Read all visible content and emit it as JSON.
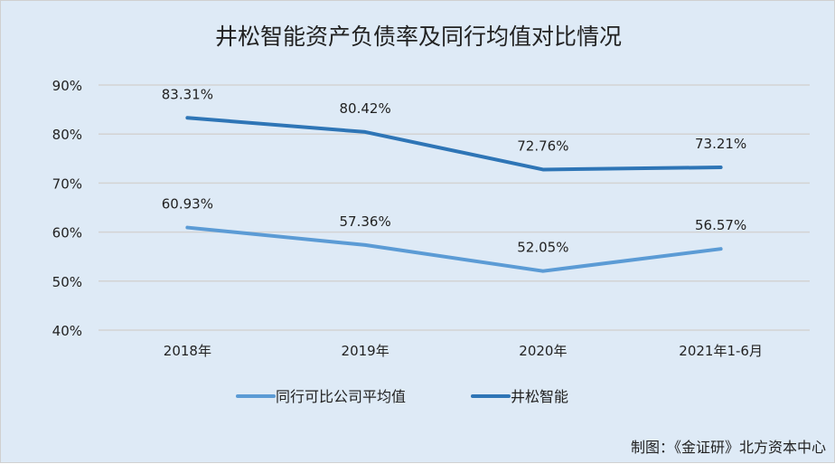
{
  "chart_data": {
    "type": "line",
    "title": "井松智能资产负债率及同行均值对比情况",
    "categories": [
      "2018年",
      "2019年",
      "2020年",
      "2021年1-6月"
    ],
    "series": [
      {
        "name": "同行可比公司平均值",
        "values": [
          60.93,
          57.36,
          52.05,
          56.57
        ],
        "labels": [
          "60.93%",
          "57.36%",
          "52.05%",
          "56.57%"
        ],
        "color": "#5b9bd5"
      },
      {
        "name": "井松智能",
        "values": [
          83.31,
          80.42,
          72.76,
          73.21
        ],
        "labels": [
          "83.31%",
          "80.42%",
          "72.76%",
          "73.21%"
        ],
        "color": "#2e75b6"
      }
    ],
    "ylim": [
      40,
      90
    ],
    "yticks": [
      "40%",
      "50%",
      "60%",
      "70%",
      "80%",
      "90%"
    ],
    "ytick_values": [
      40,
      50,
      60,
      70,
      80,
      90
    ],
    "grid": true,
    "legend": "bottom",
    "xlabel": "",
    "ylabel": ""
  },
  "footer": "制图：《金证研》北方资本中心"
}
